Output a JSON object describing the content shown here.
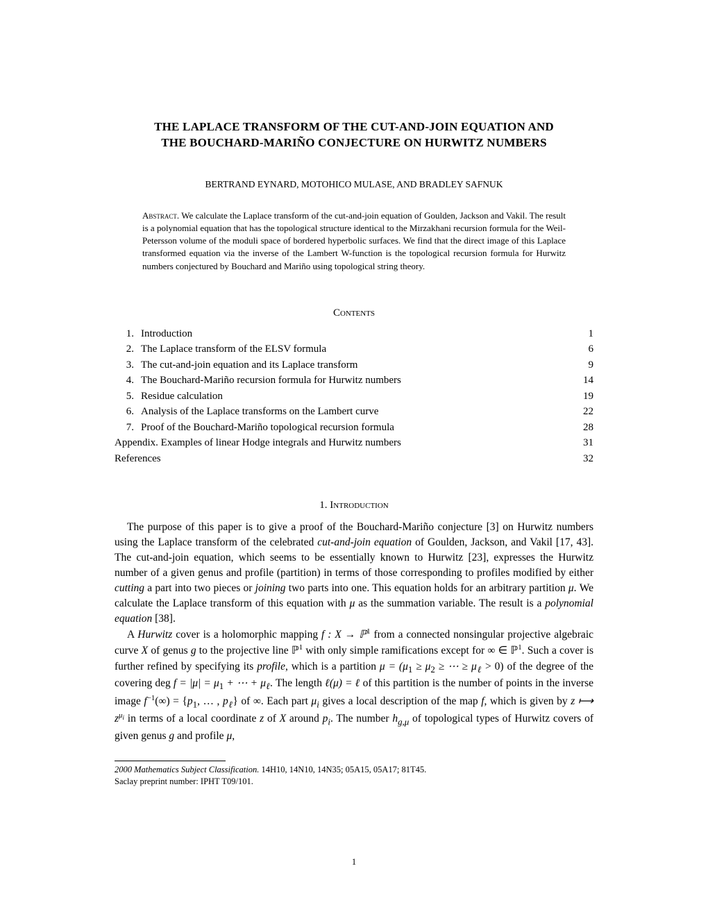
{
  "title_line1": "THE LAPLACE TRANSFORM OF THE CUT-AND-JOIN EQUATION AND",
  "title_line2": "THE BOUCHARD-MARIÑO CONJECTURE ON HURWITZ NUMBERS",
  "authors": "BERTRAND EYNARD, MOTOHICO MULASE, AND BRADLEY SAFNUK",
  "abstract_label": "Abstract.",
  "abstract_text": " We calculate the Laplace transform of the cut-and-join equation of Goulden, Jackson and Vakil. The result is a polynomial equation that has the topological structure identical to the Mirzakhani recursion formula for the Weil-Petersson volume of the moduli space of bordered hyperbolic surfaces. We find that the direct image of this Laplace transformed equation via the inverse of the Lambert W-function is the topological recursion formula for Hurwitz numbers conjectured by Bouchard and Mariño using topological string theory.",
  "contents_heading": "Contents",
  "toc": [
    {
      "num": "1.",
      "title": "Introduction",
      "page": "1"
    },
    {
      "num": "2.",
      "title": "The Laplace transform of the ELSV formula",
      "page": "6"
    },
    {
      "num": "3.",
      "title": "The cut-and-join equation and its Laplace transform",
      "page": "9"
    },
    {
      "num": "4.",
      "title": "The Bouchard-Mariño recursion formula for Hurwitz numbers",
      "page": "14"
    },
    {
      "num": "5.",
      "title": "Residue calculation",
      "page": "19"
    },
    {
      "num": "6.",
      "title": "Analysis of the Laplace transforms on the Lambert curve",
      "page": "22"
    },
    {
      "num": "7.",
      "title": "Proof of the Bouchard-Mariño topological recursion formula",
      "page": "28"
    },
    {
      "num": "",
      "title": "Appendix. Examples of linear Hodge integrals and Hurwitz numbers",
      "page": "31"
    },
    {
      "num": "",
      "title": "References",
      "page": "32"
    }
  ],
  "section_num": "1.",
  "section_name": "Introduction",
  "para1_a": "The purpose of this paper is to give a proof of the Bouchard-Mariño conjecture [3] on Hurwitz numbers using the Laplace transform of the celebrated ",
  "para1_b": "cut-and-join equation",
  "para1_c": " of Goulden, Jackson, and Vakil [17, 43]. The cut-and-join equation, which seems to be essentially known to Hurwitz [23], expresses the Hurwitz number of a given genus and profile (partition) in terms of those corresponding to profiles modified by either ",
  "para1_d": "cutting",
  "para1_e": " a part into two pieces or ",
  "para1_f": "joining",
  "para1_g": " two parts into one. This equation holds for an arbitrary partition ",
  "para1_h": "μ",
  "para1_i": ". We calculate the Laplace transform of this equation with ",
  "para1_j": "μ",
  "para1_k": " as the summation variable. The result is a ",
  "para1_l": "polynomial equation",
  "para1_m": " [38].",
  "para2_a": "A ",
  "para2_b": "Hurwitz",
  "para2_c": " cover is a holomorphic mapping ",
  "para2_d": "f : X → ℙ",
  "para2_e": " from a connected nonsingular projective algebraic curve ",
  "para2_f": "X",
  "para2_g": " of genus ",
  "para2_h": "g",
  "para2_i": " to the projective line ℙ",
  "para2_j": " with only simple ramifications except for ∞ ∈ ℙ",
  "para2_k": ". Such a cover is further refined by specifying its ",
  "para2_l": "profile",
  "para2_m": ", which is a partition ",
  "para2_n": "μ = (μ",
  "para2_o": " ≥ μ",
  "para2_p": " ≥ ⋯ ≥ μ",
  "para2_q": " > 0) of the degree of the covering deg ",
  "para2_r": "f = |μ| = μ",
  "para2_s": " + ⋯ + μ",
  "para2_t": ". The length ",
  "para2_u": "ℓ(μ) = ℓ",
  "para2_v": " of this partition is the number of points in the inverse image ",
  "para2_w": "f",
  "para2_x": "(∞) = {",
  "para2_y": "p",
  "para2_z": ", … , ",
  "para2_aa": "p",
  "para2_ab": "} of ∞. Each part ",
  "para2_ac": "μ",
  "para2_ad": " gives a local description of the map ",
  "para2_ae": "f",
  "para2_af": ", which is given by ",
  "para2_ag": "z ⟼ z",
  "para2_ah": " in terms of a local coordinate ",
  "para2_ai": "z",
  "para2_aj": " of ",
  "para2_ak": "X",
  "para2_al": " around ",
  "para2_am": "p",
  "para2_an": ". The number ",
  "para2_ao": "h",
  "para2_ap": " of topological types of Hurwitz covers of given genus ",
  "para2_aq": "g",
  "para2_ar": " and profile ",
  "para2_as": "μ",
  "para2_at": ",",
  "footnote_label": "2000 Mathematics Subject Classification.",
  "footnote_text": " 14H10, 14N10, 14N35; 05A15, 05A17; 81T45.",
  "footnote2": "Saclay preprint number: IPHT T09/101.",
  "pagenum": "1",
  "sup1": "1",
  "sub1": "1",
  "sub2": "2",
  "subl": "ℓ",
  "subi": "i",
  "supmu": "μ",
  "supneg1": "−1",
  "subgmu": "g,μ"
}
